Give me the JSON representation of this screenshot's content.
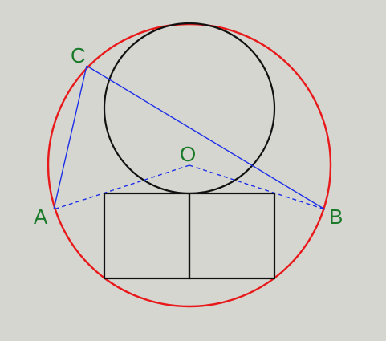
{
  "labels": {
    "A": "A",
    "B": "B",
    "C": "C",
    "O": "O"
  },
  "colors": {
    "background": "#d6d6d0",
    "outer_circle": "#e8191a",
    "segments": "#1c2ee8",
    "figure": "#111111",
    "labels": "#1a7a2a"
  }
}
